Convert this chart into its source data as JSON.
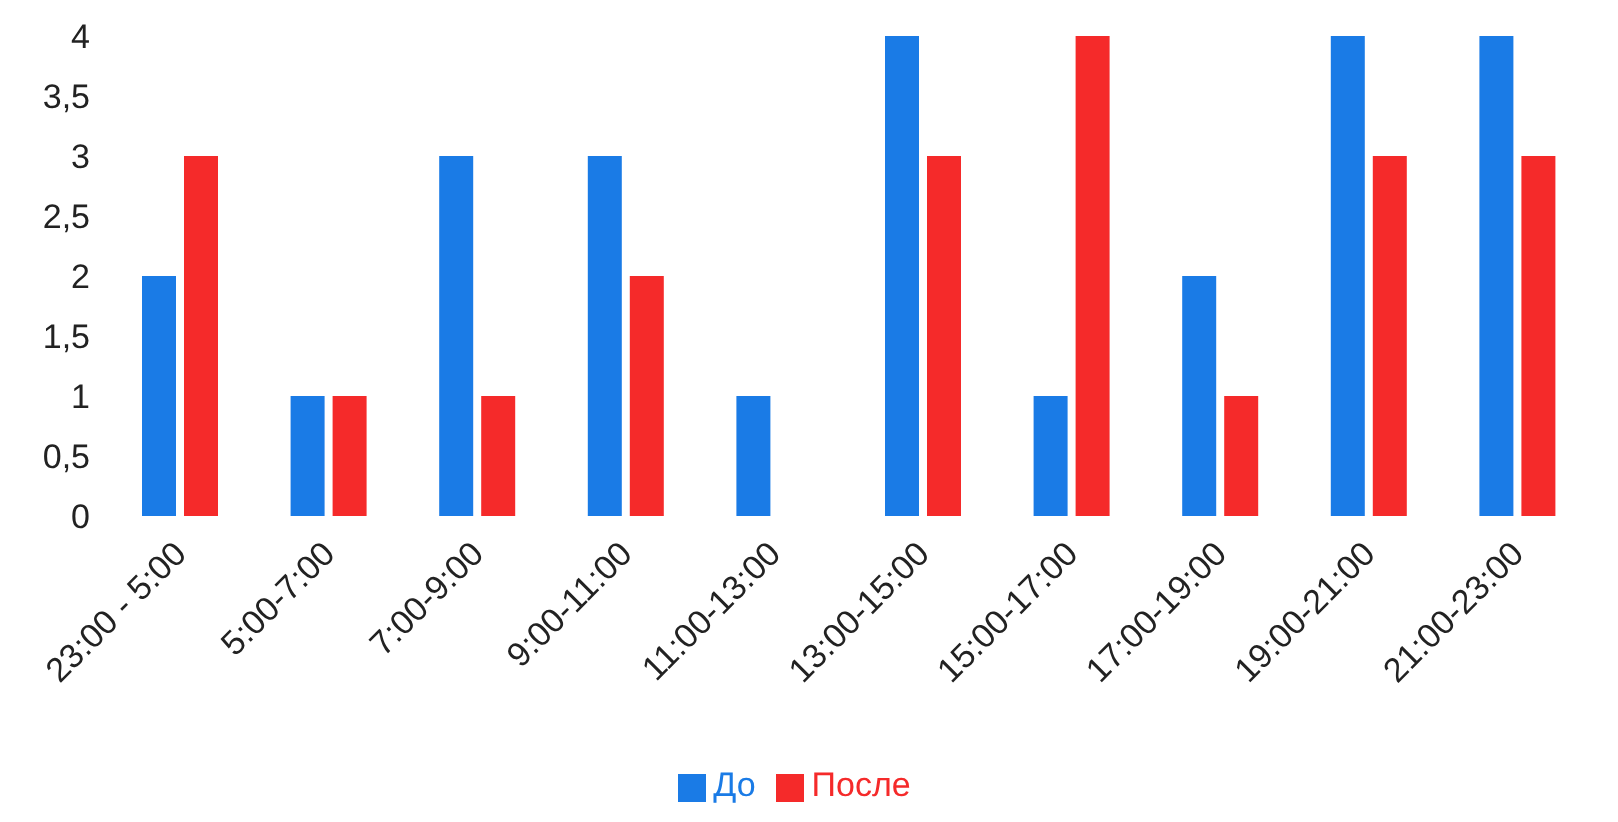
{
  "chart_data": {
    "type": "bar",
    "categories": [
      "23:00 - 5:00",
      "5:00-7:00",
      "7:00-9:00",
      "9:00-11:00",
      "11:00-13:00",
      "13:00-15:00",
      "15:00-17:00",
      "17:00-19:00",
      "19:00-21:00",
      "21:00-23:00"
    ],
    "series": [
      {
        "name": "До",
        "color": "#1a7be6",
        "values": [
          2,
          1,
          3,
          3,
          1,
          4,
          1,
          2,
          4,
          4
        ]
      },
      {
        "name": "После",
        "color": "#f52a2a",
        "values": [
          3,
          1,
          1,
          2,
          0,
          3,
          4,
          1,
          3,
          3
        ]
      }
    ],
    "ylim": [
      0,
      4
    ],
    "yticks": [
      0,
      {
        "value": 0.5,
        "label": "0,5"
      },
      1,
      {
        "value": 1.5,
        "label": "1,5"
      },
      2,
      {
        "value": 2.5,
        "label": "2,5"
      },
      3,
      {
        "value": 3.5,
        "label": "3,5"
      },
      4
    ],
    "grid": false,
    "legend": "bottom"
  }
}
